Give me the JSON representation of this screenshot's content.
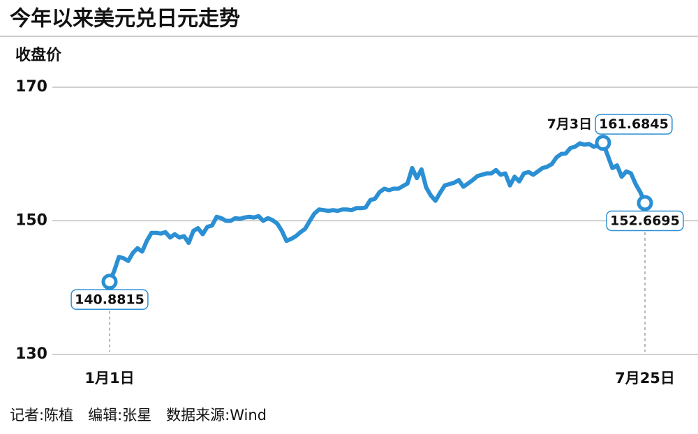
{
  "chart_data": {
    "type": "line",
    "title": "今年以来美元兑日元走势",
    "y_label": "收盘价",
    "source": "记者:陈植　编辑:张星　数据来源:Wind",
    "categories": [
      "1月1日",
      null,
      null,
      null,
      null,
      null,
      null,
      null,
      null,
      null,
      null,
      null,
      null,
      null,
      null,
      null,
      null,
      null,
      null,
      null,
      null,
      null,
      null,
      null,
      null,
      null,
      null,
      null,
      null,
      null,
      null,
      null,
      null,
      null,
      null,
      null,
      null,
      null,
      null,
      null,
      null,
      null,
      null,
      null,
      null,
      null,
      null,
      null,
      null,
      null,
      null,
      null,
      null,
      null,
      null,
      null,
      null,
      null,
      null,
      null,
      null,
      null,
      null,
      null,
      null,
      null,
      null,
      null,
      null,
      null,
      null,
      null,
      null,
      null,
      null,
      null,
      null,
      null,
      null,
      null,
      null,
      null,
      null,
      null,
      null,
      null,
      null,
      null,
      null,
      null,
      null,
      null,
      null,
      null,
      null,
      null,
      null,
      null,
      null,
      null,
      null,
      null,
      null,
      null,
      null,
      null,
      "7月3日",
      null,
      null,
      null,
      null,
      null,
      null,
      null,
      null,
      "7月25日"
    ],
    "series": [
      {
        "name": "收盘价",
        "color": "#2b8fd3",
        "values": [
          140.8815,
          142.5,
          144.6,
          144.4,
          144.0,
          145.2,
          145.9,
          145.4,
          147.0,
          148.2,
          148.2,
          148.1,
          148.3,
          147.5,
          148.0,
          147.5,
          147.7,
          146.7,
          148.5,
          148.9,
          148.0,
          149.1,
          149.3,
          150.6,
          150.4,
          150.0,
          150.0,
          150.4,
          150.3,
          150.5,
          150.6,
          150.5,
          150.7,
          150.0,
          150.4,
          150.1,
          149.6,
          148.5,
          147.0,
          147.3,
          147.7,
          148.3,
          148.8,
          150.0,
          151.1,
          151.7,
          151.6,
          151.5,
          151.6,
          151.5,
          151.7,
          151.7,
          151.6,
          151.9,
          151.9,
          152.0,
          153.1,
          153.3,
          154.3,
          154.8,
          154.6,
          154.8,
          154.8,
          155.2,
          155.6,
          157.9,
          156.4,
          157.7,
          155.0,
          153.8,
          153.0,
          154.2,
          155.3,
          155.5,
          155.7,
          156.1,
          155.1,
          155.6,
          156.1,
          156.7,
          156.9,
          157.1,
          157.1,
          157.6,
          156.9,
          157.1,
          155.3,
          156.6,
          155.9,
          157.1,
          157.3,
          156.9,
          157.4,
          157.9,
          158.1,
          158.5,
          159.5,
          160.0,
          160.1,
          160.9,
          161.1,
          161.6,
          161.4,
          161.5,
          161.1,
          161.3,
          161.6845,
          159.8,
          157.9,
          158.3,
          156.6,
          157.4,
          157.1,
          155.5,
          154.3,
          152.6695
        ]
      }
    ],
    "ylim": [
      130,
      170
    ],
    "yticks": [
      130,
      150,
      170
    ],
    "grid": true
  }
}
